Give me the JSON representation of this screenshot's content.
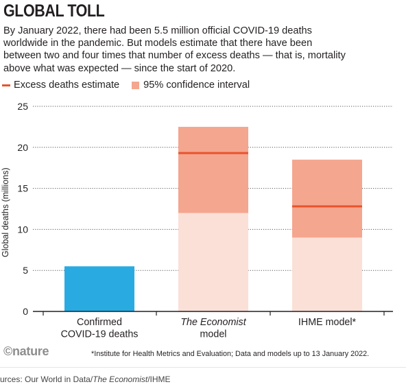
{
  "header": {
    "title": "GLOBAL TOLL",
    "subtitle": "By January 2022, there had been 5.5 million official COVID-19 deaths worldwide in the pandemic. But models estimate that there have been between two and four times that number of excess deaths — that is, mortality above what was expected — since the start of 2020."
  },
  "legend": {
    "line_label": "Excess deaths estimate",
    "box_label": "95% confidence interval"
  },
  "footer": {
    "logo": "©nature",
    "footnote": "*Institute for Health Metrics and Evaluation; Data and models up to 13 January 2022.",
    "source_prefix": "urces: Our World in Data/",
    "source_italic": "The Economist",
    "source_suffix": "/IHME"
  },
  "chart_data": {
    "type": "bar",
    "ylabel": "Global deaths (millions)",
    "ylim": [
      0,
      25
    ],
    "yticks": [
      0,
      5,
      10,
      15,
      20,
      25
    ],
    "grid": true,
    "legend_position": "top-left",
    "categories": [
      {
        "lines": [
          {
            "text": "Confirmed",
            "italic": false
          },
          {
            "text": "COVID-19 deaths",
            "italic": false
          }
        ]
      },
      {
        "lines": [
          {
            "text": "The Economist",
            "italic": true
          },
          {
            "text": "model",
            "italic": false
          }
        ]
      },
      {
        "lines": [
          {
            "text": "IHME model*",
            "italic": false
          }
        ]
      }
    ],
    "series": [
      {
        "name": "Confirmed",
        "values": [
          5.5,
          null,
          null
        ]
      },
      {
        "name": "Excess deaths estimate",
        "values": [
          null,
          19.3,
          12.8
        ]
      },
      {
        "name": "95% confidence interval",
        "low": [
          null,
          12.0,
          9.0
        ],
        "high": [
          null,
          22.5,
          18.5
        ]
      }
    ],
    "colors": {
      "confirmed": "#29abe2",
      "ci": "#f4a68f",
      "below_ci": "#fbe0d7",
      "estimate": "#e8542c",
      "axis": "#231f20",
      "grid": "#555555"
    }
  }
}
